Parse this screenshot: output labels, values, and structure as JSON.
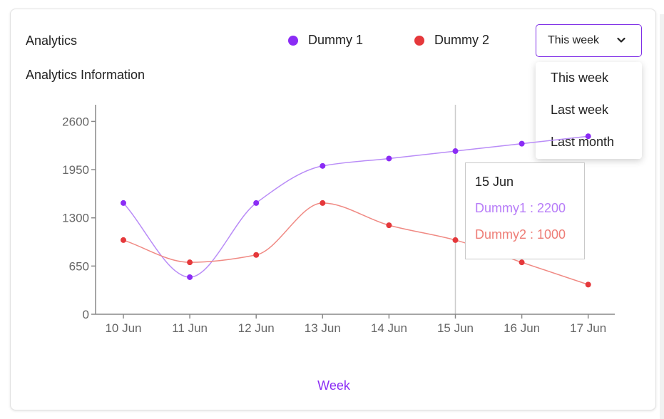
{
  "header": {
    "title": "Analytics",
    "subtitle": "Analytics Information"
  },
  "legend": [
    {
      "name": "Dummy 1",
      "color": "#8b2cf5"
    },
    {
      "name": "Dummy 2",
      "color": "#e5383b"
    }
  ],
  "range_select": {
    "selected": "This week",
    "options": [
      "This week",
      "Last week",
      "Last month"
    ]
  },
  "tooltip": {
    "date": "15 Jun",
    "line1": "Dummy1 : 2200",
    "line2": "Dummy2 : 1000",
    "color1": "#b77cf8",
    "color2": "#ee7d76"
  },
  "chart_data": {
    "type": "line",
    "categories": [
      "10 Jun",
      "11 Jun",
      "12 Jun",
      "13 Jun",
      "14 Jun",
      "15 Jun",
      "16 Jun",
      "17 Jun"
    ],
    "series": [
      {
        "name": "Dummy 1",
        "values": [
          1500,
          500,
          1500,
          2000,
          2100,
          2200,
          2300,
          2400
        ],
        "color": "#8b2cf5",
        "line_color": "#b98cf7"
      },
      {
        "name": "Dummy 2",
        "values": [
          1000,
          700,
          800,
          1500,
          1200,
          1000,
          700,
          400
        ],
        "color": "#e5383b",
        "line_color": "#f08a84"
      }
    ],
    "y_ticks": [
      0,
      650,
      1300,
      1950,
      2600
    ],
    "ylim": [
      0,
      2825
    ],
    "xlabel": "Week",
    "ylabel": "",
    "grid": false,
    "hover_category": "15 Jun"
  }
}
